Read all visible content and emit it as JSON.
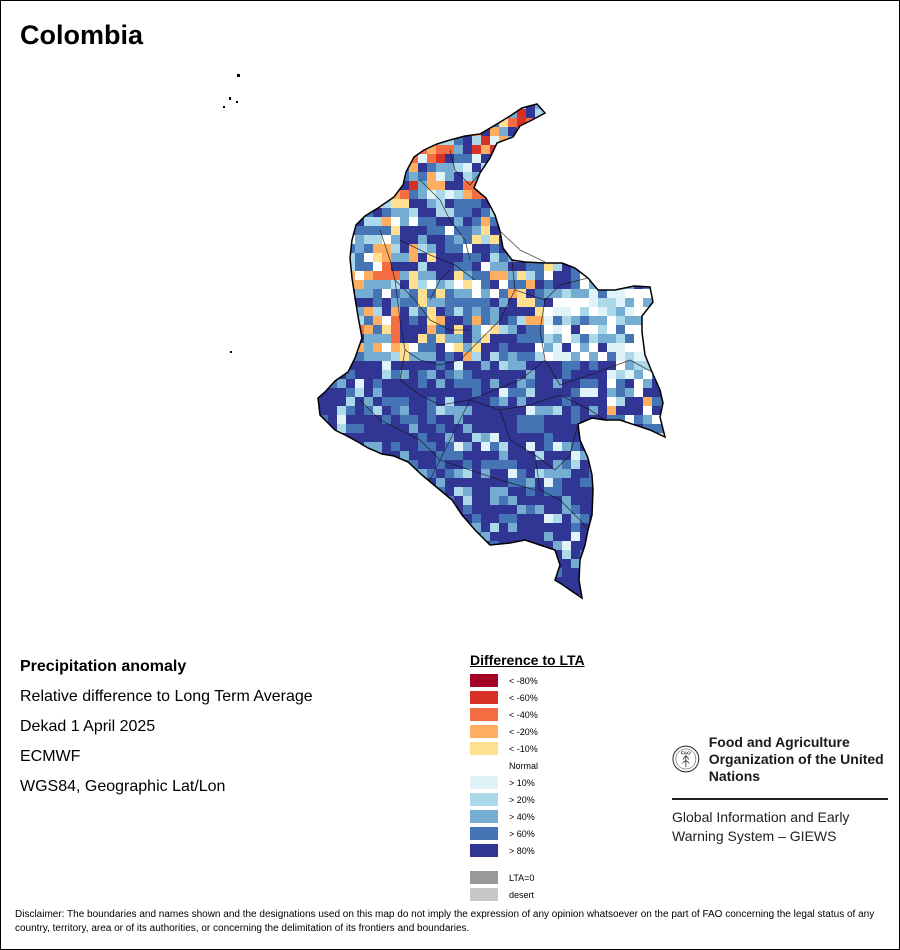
{
  "map": {
    "title": "Colombia",
    "product": "Precipitation anomaly",
    "measure": "Relative difference to Long Term Average",
    "period": "Dekad 1 April 2025",
    "source": "ECMWF",
    "projection": "WGS84, Geographic Lat/Lon"
  },
  "legend": {
    "title": "Difference to LTA",
    "classes": [
      {
        "label": "< -80%",
        "color": "#a50026"
      },
      {
        "label": "< -60%",
        "color": "#d73027"
      },
      {
        "label": "< -40%",
        "color": "#f46d43"
      },
      {
        "label": "< -20%",
        "color": "#fdae61"
      },
      {
        "label": "< -10%",
        "color": "#fee090"
      },
      {
        "label": "Normal",
        "color": "#ffffff"
      },
      {
        "label": "> 10%",
        "color": "#e0f3f8"
      },
      {
        "label": "> 20%",
        "color": "#abd9e9"
      },
      {
        "label": "> 40%",
        "color": "#74add1"
      },
      {
        "label": "> 60%",
        "color": "#4575b4"
      },
      {
        "label": "> 80%",
        "color": "#313695"
      }
    ],
    "extra": [
      {
        "label": "LTA=0",
        "color": "#999999"
      },
      {
        "label": "desert",
        "color": "#c8c8c8"
      }
    ]
  },
  "org": {
    "emblem_letters": "FAO",
    "name": "Food and Agriculture Organization of the United Nations",
    "system": "Global Information and Early Warning System – GIEWS"
  },
  "disclaimer": "Disclaimer: The boundaries and names shown and the designations used on this map do not imply the expression of any opinion whatsoever on the part of FAO concerning the legal status of any country, territory, area or of its authorities, or concerning the delimitation of its frontiers and boundaries."
}
